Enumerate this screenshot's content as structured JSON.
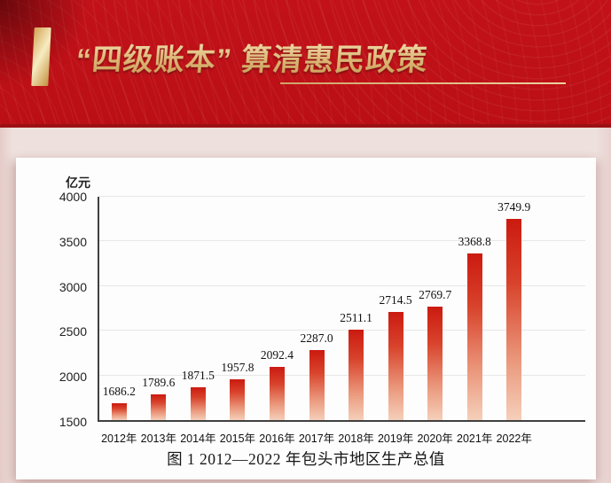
{
  "banner": {
    "title": "“四级账本” 算清惠民政策",
    "background_color": "#c21119",
    "accent_gold": "#e0bd83"
  },
  "chart_data": {
    "type": "bar",
    "caption": "图 1  2012—2022 年包头市地区生产总值",
    "unit": "亿元",
    "categories": [
      "2012年",
      "2013年",
      "2014年",
      "2015年",
      "2016年",
      "2017年",
      "2018年",
      "2019年",
      "2020年",
      "2021年",
      "2022年"
    ],
    "values": [
      1686.2,
      1789.6,
      1871.5,
      1957.8,
      2092.4,
      2287.0,
      2511.1,
      2714.5,
      2769.7,
      3368.8,
      3749.9
    ],
    "value_labels": [
      "1686.2",
      "1789.6",
      "1871.5",
      "1957.8",
      "2092.4",
      "2287.0",
      "2511.1",
      "2714.5",
      "2769.7",
      "3368.8",
      "3749.9"
    ],
    "ylim": [
      1500,
      4000
    ],
    "yticks": [
      1500,
      2000,
      2500,
      3000,
      3500,
      4000
    ],
    "grid": true,
    "legend": null,
    "bar_color_top": "#cb1a10",
    "bar_color_bottom": "#f5cfba"
  }
}
